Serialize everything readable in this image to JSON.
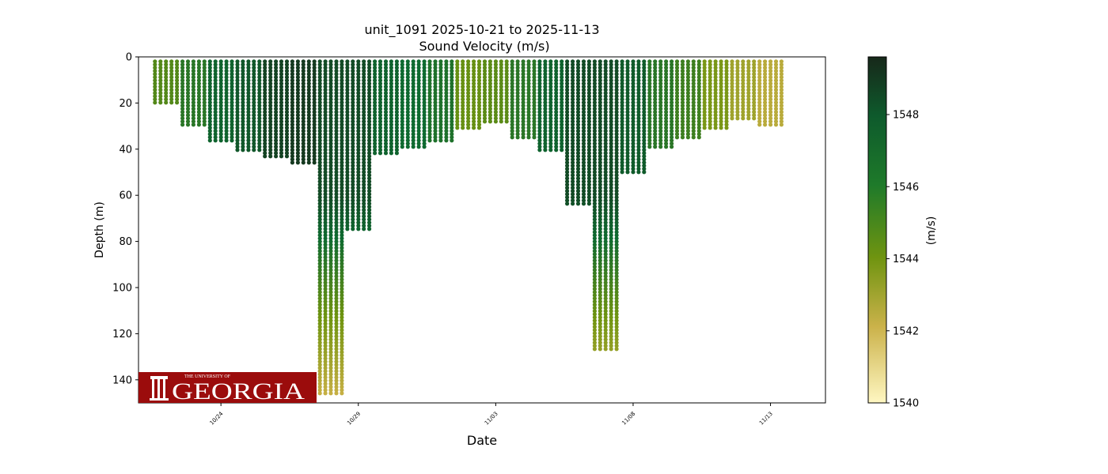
{
  "chart_data": {
    "type": "scatter",
    "title": "unit_1091 2025-10-21 to 2025-11-13",
    "subtitle": "Sound Velocity (m/s)",
    "xlabel": "Date",
    "ylabel": "Depth (m)",
    "x_range": [
      "2025-10-21",
      "2025-11-15"
    ],
    "ylim": [
      150,
      0
    ],
    "y_ticks": [
      0,
      20,
      40,
      60,
      80,
      100,
      120,
      140
    ],
    "x_ticks": [
      "10/24",
      "10/29",
      "11/03",
      "11/08",
      "11/13"
    ],
    "colorbar": {
      "label": "(m/s)",
      "range": [
        1540,
        1549.6
      ],
      "ticks": [
        1540,
        1542,
        1544,
        1546,
        1548
      ],
      "colors": [
        "#fff7c2",
        "#c8b045",
        "#6f9410",
        "#0e6a30",
        "#17301d"
      ]
    },
    "profiles": [
      {
        "date": "2025-10-22",
        "max_depth": 21,
        "velocity": 1545.5
      },
      {
        "date": "2025-10-23",
        "max_depth": 30,
        "velocity": 1546.5
      },
      {
        "date": "2025-10-24",
        "max_depth": 37,
        "velocity": 1547.5
      },
      {
        "date": "2025-10-25",
        "max_depth": 41,
        "velocity": 1548.0
      },
      {
        "date": "2025-10-26",
        "max_depth": 44,
        "velocity": 1548.8
      },
      {
        "date": "2025-10-27",
        "max_depth": 46,
        "velocity": 1549.2
      },
      {
        "date": "2025-10-28",
        "max_depth": 147,
        "velocity": 1548.5
      },
      {
        "date": "2025-10-29",
        "max_depth": 75,
        "velocity": 1548.5
      },
      {
        "date": "2025-10-30",
        "max_depth": 42,
        "velocity": 1547.5
      },
      {
        "date": "2025-10-31",
        "max_depth": 40,
        "velocity": 1547.2
      },
      {
        "date": "2025-11-01",
        "max_depth": 37,
        "velocity": 1546.8
      },
      {
        "date": "2025-11-02",
        "max_depth": 32,
        "velocity": 1545.0
      },
      {
        "date": "2025-11-03",
        "max_depth": 29,
        "velocity": 1545.3
      },
      {
        "date": "2025-11-04",
        "max_depth": 35,
        "velocity": 1546.5
      },
      {
        "date": "2025-11-05",
        "max_depth": 41,
        "velocity": 1547.5
      },
      {
        "date": "2025-11-06",
        "max_depth": 64,
        "velocity": 1548.5
      },
      {
        "date": "2025-11-07",
        "max_depth": 128,
        "velocity": 1548.5
      },
      {
        "date": "2025-11-08",
        "max_depth": 50,
        "velocity": 1547.8
      },
      {
        "date": "2025-11-09",
        "max_depth": 40,
        "velocity": 1546.5
      },
      {
        "date": "2025-11-10",
        "max_depth": 36,
        "velocity": 1546.0
      },
      {
        "date": "2025-11-11",
        "max_depth": 31,
        "velocity": 1544.5
      },
      {
        "date": "2025-11-12",
        "max_depth": 28,
        "velocity": 1543.5
      },
      {
        "date": "2025-11-13",
        "max_depth": 30,
        "velocity": 1542.8
      }
    ]
  },
  "logo": {
    "text_small": "THE UNIVERSITY OF",
    "text_large": "GEORGIA",
    "background": "#9b0c0c"
  }
}
